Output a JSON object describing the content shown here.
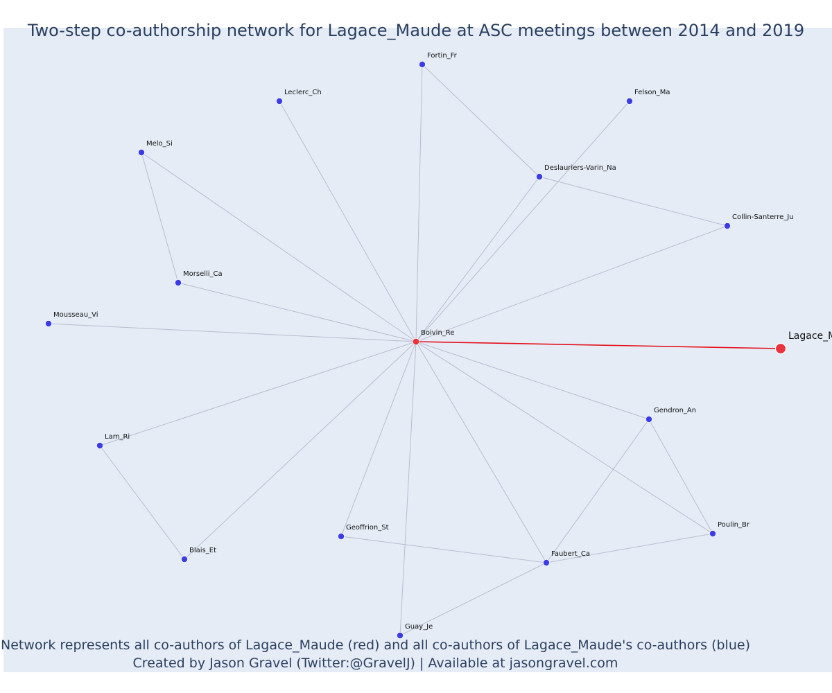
{
  "title": "Two-step co-authorship network for Lagace_Maude at ASC meetings between 2014 and 2019",
  "footer": {
    "line1": "Network represents all co-authors of Lagace_Maude (red) and all co-authors of Lagace_Maude's co-authors (blue)",
    "line2": "Created by Jason Gravel (Twitter:@GravelJ) | Available at jasongravel.com"
  },
  "colors": {
    "background": "#e5ecf6",
    "coauthor": "#3b3be8",
    "focus": "#e8323c",
    "edge": "#b8bcd0",
    "focus_edge": "#e4101a",
    "text": "#2a3f5f"
  },
  "network": {
    "focus_author": "Lagace_Maude",
    "focus_label_visible": "Lagace_M",
    "nodes": [
      {
        "id": "Boivin_Re",
        "label": "Boivin_Re",
        "role": "hub"
      },
      {
        "id": "Lagace_Maude",
        "label": "Lagace_M",
        "role": "focus"
      },
      {
        "id": "Fortin_Fr",
        "label": "Fortin_Fr",
        "role": "coauthor"
      },
      {
        "id": "Leclerc_Ch",
        "label": "Leclerc_Ch",
        "role": "coauthor"
      },
      {
        "id": "Felson_Ma",
        "label": "Felson_Ma",
        "role": "coauthor"
      },
      {
        "id": "Melo_Si",
        "label": "Melo_Si",
        "role": "coauthor"
      },
      {
        "id": "Deslauriers-Varin_Na",
        "label": "Deslauriers-Varin_Na",
        "role": "coauthor"
      },
      {
        "id": "Collin-Santerre_Ju",
        "label": "Collin-Santerre_Ju",
        "role": "coauthor"
      },
      {
        "id": "Morselli_Ca",
        "label": "Morselli_Ca",
        "role": "coauthor"
      },
      {
        "id": "Mousseau_Vi",
        "label": "Mousseau_Vi",
        "role": "coauthor"
      },
      {
        "id": "Gendron_An",
        "label": "Gendron_An",
        "role": "coauthor"
      },
      {
        "id": "Lam_Ri",
        "label": "Lam_Ri",
        "role": "coauthor"
      },
      {
        "id": "Poulin_Br",
        "label": "Poulin_Br",
        "role": "coauthor"
      },
      {
        "id": "Geoffrion_St",
        "label": "Geoffrion_St",
        "role": "coauthor"
      },
      {
        "id": "Faubert_Ca",
        "label": "Faubert_Ca",
        "role": "coauthor"
      },
      {
        "id": "Blais_Et",
        "label": "Blais_Et",
        "role": "coauthor"
      },
      {
        "id": "Guay_Je",
        "label": "Guay_Je",
        "role": "coauthor"
      }
    ],
    "edges": [
      {
        "source": "Boivin_Re",
        "target": "Lagace_Maude",
        "focus": true
      },
      {
        "source": "Boivin_Re",
        "target": "Fortin_Fr"
      },
      {
        "source": "Boivin_Re",
        "target": "Leclerc_Ch"
      },
      {
        "source": "Boivin_Re",
        "target": "Felson_Ma"
      },
      {
        "source": "Boivin_Re",
        "target": "Melo_Si"
      },
      {
        "source": "Boivin_Re",
        "target": "Deslauriers-Varin_Na"
      },
      {
        "source": "Boivin_Re",
        "target": "Collin-Santerre_Ju"
      },
      {
        "source": "Boivin_Re",
        "target": "Morselli_Ca"
      },
      {
        "source": "Boivin_Re",
        "target": "Mousseau_Vi"
      },
      {
        "source": "Boivin_Re",
        "target": "Gendron_An"
      },
      {
        "source": "Boivin_Re",
        "target": "Lam_Ri"
      },
      {
        "source": "Boivin_Re",
        "target": "Poulin_Br"
      },
      {
        "source": "Boivin_Re",
        "target": "Geoffrion_St"
      },
      {
        "source": "Boivin_Re",
        "target": "Faubert_Ca"
      },
      {
        "source": "Boivin_Re",
        "target": "Blais_Et"
      },
      {
        "source": "Boivin_Re",
        "target": "Guay_Je"
      },
      {
        "source": "Fortin_Fr",
        "target": "Deslauriers-Varin_Na"
      },
      {
        "source": "Deslauriers-Varin_Na",
        "target": "Collin-Santerre_Ju"
      },
      {
        "source": "Melo_Si",
        "target": "Morselli_Ca"
      },
      {
        "source": "Lam_Ri",
        "target": "Blais_Et"
      },
      {
        "source": "Gendron_An",
        "target": "Poulin_Br"
      },
      {
        "source": "Gendron_An",
        "target": "Faubert_Ca"
      },
      {
        "source": "Faubert_Ca",
        "target": "Poulin_Br"
      },
      {
        "source": "Geoffrion_St",
        "target": "Faubert_Ca"
      },
      {
        "source": "Faubert_Ca",
        "target": "Guay_Je"
      }
    ]
  }
}
